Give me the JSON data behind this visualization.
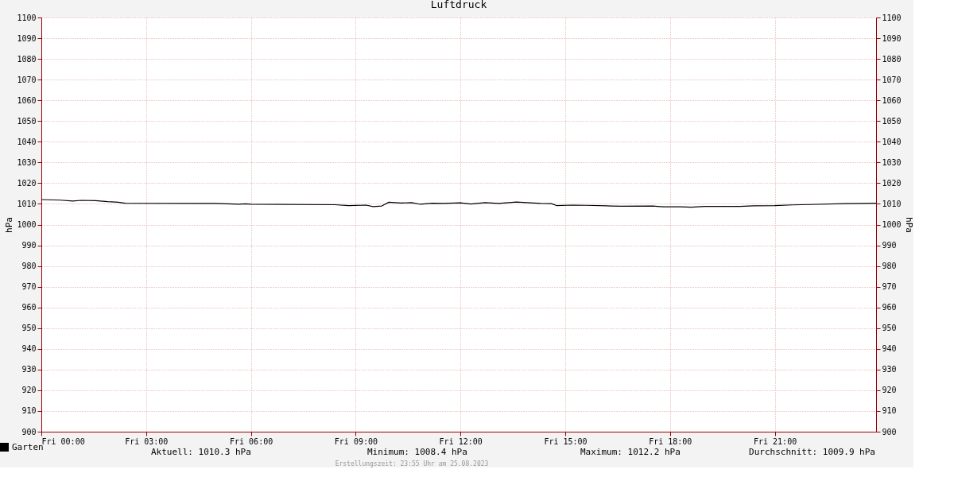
{
  "chart_data": {
    "type": "line",
    "title": "Luftdruck",
    "ylabel": "hPa",
    "y2label": "hPa",
    "x": [
      "2023-08-25T00:00",
      "2023-08-25T00:33",
      "2023-08-25T00:54",
      "2023-08-25T01:09",
      "2023-08-25T01:33",
      "2023-08-25T01:54",
      "2023-08-25T02:12",
      "2023-08-25T02:24",
      "2023-08-25T05:00",
      "2023-08-25T05:39",
      "2023-08-25T05:51",
      "2023-08-25T06:00",
      "2023-08-25T08:24",
      "2023-08-25T08:48",
      "2023-08-25T09:18",
      "2023-08-25T09:30",
      "2023-08-25T09:45",
      "2023-08-25T09:57",
      "2023-08-25T10:18",
      "2023-08-25T10:36",
      "2023-08-25T10:51",
      "2023-08-25T11:12",
      "2023-08-25T11:30",
      "2023-08-25T12:00",
      "2023-08-25T12:18",
      "2023-08-25T12:42",
      "2023-08-25T13:06",
      "2023-08-25T13:36",
      "2023-08-25T13:54",
      "2023-08-25T14:18",
      "2023-08-25T14:36",
      "2023-08-25T14:45",
      "2023-08-25T15:12",
      "2023-08-25T15:36",
      "2023-08-25T16:18",
      "2023-08-25T16:36",
      "2023-08-25T17:30",
      "2023-08-25T17:48",
      "2023-08-25T18:18",
      "2023-08-25T18:36",
      "2023-08-25T19:00",
      "2023-08-25T20:00",
      "2023-08-25T20:24",
      "2023-08-25T21:00",
      "2023-08-25T21:30",
      "2023-08-25T22:00",
      "2023-08-25T23:00",
      "2023-08-25T23:30",
      "2023-08-25T23:54"
    ],
    "series": [
      {
        "name": "Garten",
        "color": "#000000",
        "values": [
          1012.1,
          1011.8,
          1011.4,
          1011.7,
          1011.6,
          1011.1,
          1010.8,
          1010.3,
          1010.2,
          1009.8,
          1010.0,
          1009.8,
          1009.6,
          1009.2,
          1009.4,
          1008.7,
          1009.0,
          1010.8,
          1010.4,
          1010.6,
          1009.8,
          1010.3,
          1010.2,
          1010.5,
          1009.9,
          1010.6,
          1010.2,
          1010.9,
          1010.6,
          1010.2,
          1010.1,
          1009.2,
          1009.4,
          1009.3,
          1009.0,
          1008.9,
          1009.0,
          1008.6,
          1008.6,
          1008.4,
          1008.8,
          1008.8,
          1009.1,
          1009.2,
          1009.5,
          1009.7,
          1010.1,
          1010.2,
          1010.3
        ]
      }
    ],
    "xlim": [
      "2023-08-25T00:00",
      "2023-08-25T23:54"
    ],
    "xticks": [
      {
        "value": "2023-08-25T00:00",
        "label": "Fri 00:00"
      },
      {
        "value": "2023-08-25T03:00",
        "label": "Fri 03:00"
      },
      {
        "value": "2023-08-25T06:00",
        "label": "Fri 06:00"
      },
      {
        "value": "2023-08-25T09:00",
        "label": "Fri 09:00"
      },
      {
        "value": "2023-08-25T12:00",
        "label": "Fri 12:00"
      },
      {
        "value": "2023-08-25T15:00",
        "label": "Fri 15:00"
      },
      {
        "value": "2023-08-25T18:00",
        "label": "Fri 18:00"
      },
      {
        "value": "2023-08-25T21:00",
        "label": "Fri 21:00"
      }
    ],
    "ylim": [
      900,
      1100
    ],
    "yticks": [
      900,
      910,
      920,
      930,
      940,
      950,
      960,
      970,
      980,
      990,
      1000,
      1010,
      1020,
      1030,
      1040,
      1050,
      1060,
      1070,
      1080,
      1090,
      1100
    ],
    "y2lim": [
      900,
      1100
    ],
    "y2ticks": [
      900,
      910,
      920,
      930,
      940,
      950,
      960,
      970,
      980,
      990,
      1000,
      1010,
      1020,
      1030,
      1040,
      1050,
      1060,
      1070,
      1080,
      1090,
      1100
    ],
    "grid": true,
    "legend": "bottom left",
    "annotations": [
      "Aktuell: 1010.3 hPa",
      "Minimum: 1008.4 hPa",
      "Maximum: 1012.2 hPa",
      "Durchschnitt: 1009.9 hPa",
      "Erstellungszeit: 23:55 Uhr am 25.08.2023"
    ]
  }
}
